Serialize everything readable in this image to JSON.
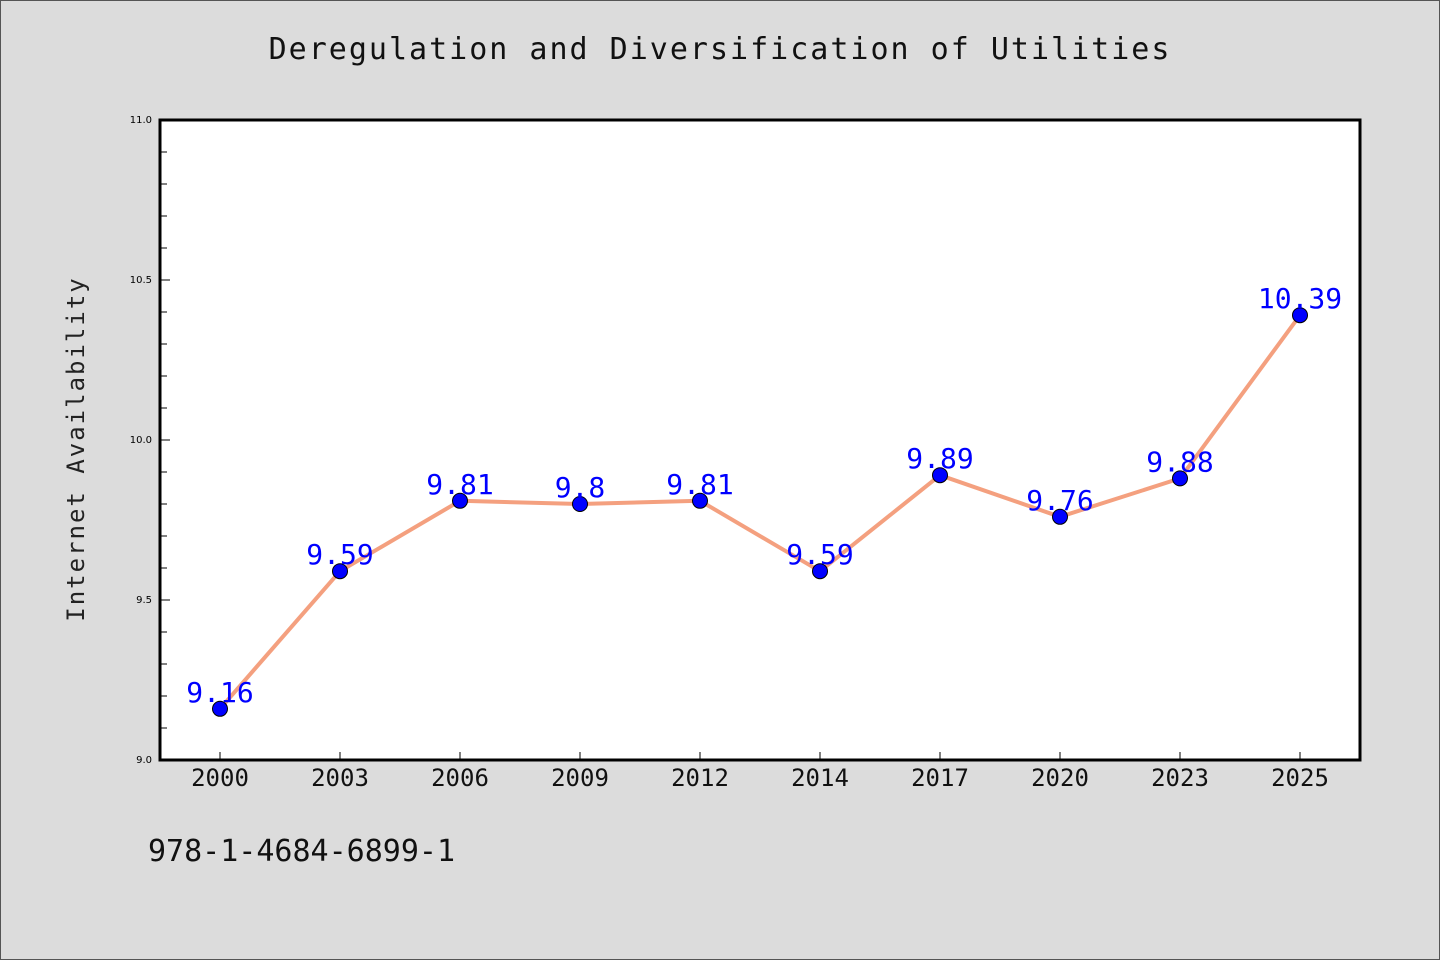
{
  "chart_data": {
    "type": "line",
    "title": "Deregulation and Diversification of Utilities",
    "xlabel": "",
    "ylabel": "Internet Availability",
    "categories": [
      "2000",
      "2003",
      "2006",
      "2009",
      "2012",
      "2014",
      "2017",
      "2020",
      "2023",
      "2025"
    ],
    "series": [
      {
        "values": [
          9.16,
          9.59,
          9.81,
          9.8,
          9.81,
          9.59,
          9.89,
          9.76,
          9.88,
          10.39
        ]
      }
    ],
    "data_labels": [
      "9.16",
      "9.59",
      "9.81",
      "9.8",
      "9.81",
      "9.59",
      "9.89",
      "9.76",
      "9.88",
      "10.39"
    ],
    "ylim": [
      9.0,
      11.0
    ],
    "y_ticks": [
      "9.0",
      "9.5",
      "10.0",
      "10.5",
      "11.0"
    ],
    "grid": false,
    "colors": {
      "line": "#f4a07f",
      "marker": "#0000ff",
      "label": "#0000ff"
    }
  },
  "footer": {
    "isbn": "978-1-4684-6899-1"
  }
}
